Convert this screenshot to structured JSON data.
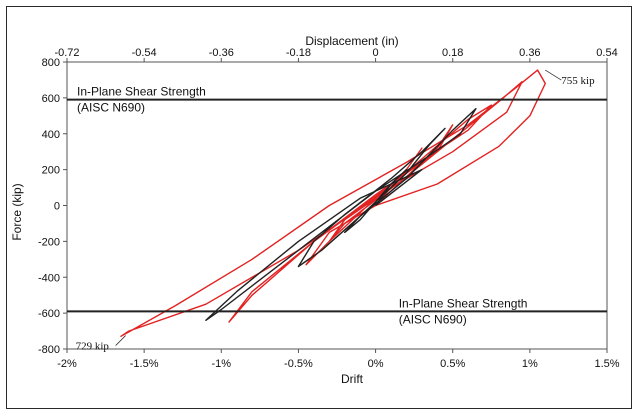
{
  "chart_data": {
    "type": "line",
    "title": "",
    "xlabel": "Drift",
    "ylabel": "Force (kip)",
    "x2label": "Displacement (in)",
    "xlim": [
      -2,
      1.5
    ],
    "ylim": [
      -800,
      800
    ],
    "x_ticks": [
      -2,
      -1.5,
      -1,
      -0.5,
      0,
      0.5,
      1,
      1.5
    ],
    "x_tick_labels": [
      "-2%",
      "-1.5%",
      "-1%",
      "-0.5%",
      "0%",
      "0.5%",
      "1%",
      "1.5%"
    ],
    "y_ticks": [
      -800,
      -600,
      -400,
      -200,
      0,
      200,
      400,
      600,
      800
    ],
    "y_tick_labels": [
      "-800",
      "-600",
      "-400",
      "-200",
      "0",
      "200",
      "400",
      "600",
      "800"
    ],
    "x2_tick_labels": [
      "-0.72",
      "-0.54",
      "-0.36",
      "-0.18",
      "0",
      "0.18",
      "0.36",
      "0.54"
    ],
    "grid": false,
    "reference_lines": [
      {
        "y": 590,
        "label_line1": "In-Plane Shear Strength",
        "label_line2": "(AISC N690)"
      },
      {
        "y": -590,
        "label_line1": "In-Plane Shear Strength",
        "label_line2": "(AISC N690)"
      }
    ],
    "annotations": [
      {
        "text": "755 kip",
        "x": 1.1,
        "y": 755
      },
      {
        "text": "729 kip",
        "x": -1.62,
        "y": -725
      }
    ],
    "series": [
      {
        "color": "#e32222",
        "x": [
          0.0,
          0.1,
          0.2,
          0.3,
          0.2,
          0.0,
          -0.2,
          -0.3,
          -0.2,
          0.0,
          0.2,
          0.4,
          0.5,
          0.4,
          0.2,
          0.0,
          -0.3,
          -0.45,
          -0.3,
          0.0,
          0.3,
          0.6,
          0.75,
          0.6,
          0.3,
          0.0,
          -0.4,
          -0.8,
          -0.95,
          -0.8,
          -0.4,
          0.0,
          0.4,
          0.8,
          0.95,
          0.85,
          0.5,
          0.1,
          -0.5,
          -1.1,
          -1.6,
          -1.65,
          -1.3,
          -0.8,
          -0.3,
          0.2,
          0.6,
          0.9,
          1.05,
          1.1,
          1.0,
          0.8,
          0.4,
          0.0
        ],
        "y": [
          0,
          100,
          200,
          320,
          200,
          40,
          -80,
          -200,
          -100,
          30,
          160,
          300,
          450,
          320,
          160,
          0,
          -150,
          -330,
          -200,
          40,
          260,
          480,
          560,
          420,
          250,
          50,
          -200,
          -500,
          -650,
          -480,
          -200,
          60,
          300,
          580,
          690,
          520,
          300,
          100,
          -250,
          -550,
          -700,
          -729,
          -560,
          -300,
          0,
          240,
          450,
          650,
          755,
          680,
          500,
          330,
          120,
          0
        ]
      },
      {
        "color": "#222222",
        "x": [
          0.0,
          0.1,
          0.2,
          0.1,
          0.0,
          -0.1,
          -0.2,
          -0.1,
          0.0,
          0.2,
          0.35,
          0.45,
          0.3,
          0.1,
          -0.2,
          -0.4,
          -0.5,
          -0.35,
          -0.1,
          0.2,
          0.5,
          0.65,
          0.55,
          0.3,
          0.0,
          -0.5,
          -1.0,
          -1.1,
          -0.9,
          -0.5,
          -0.1,
          0.3,
          0.0
        ],
        "y": [
          0,
          120,
          200,
          120,
          20,
          -60,
          -150,
          -80,
          20,
          180,
          340,
          430,
          300,
          150,
          -50,
          -200,
          -340,
          -250,
          -60,
          150,
          420,
          540,
          400,
          250,
          80,
          -250,
          -580,
          -640,
          -480,
          -200,
          40,
          200,
          0
        ]
      }
    ]
  }
}
